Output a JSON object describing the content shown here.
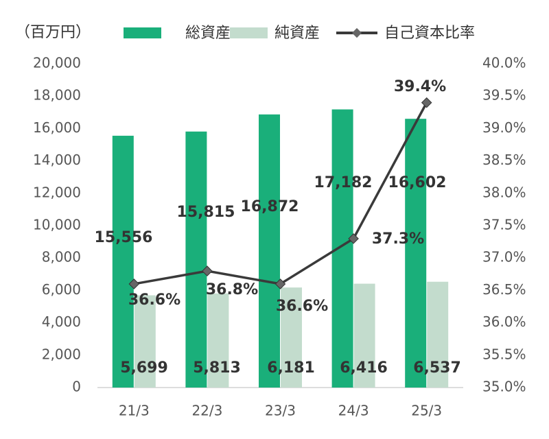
{
  "chart_data": {
    "type": "bar-line",
    "unit_label": "（百万円）",
    "categories": [
      "21/3",
      "22/3",
      "23/3",
      "24/3",
      "25/3"
    ],
    "series": [
      {
        "name": "総資産",
        "type": "bar",
        "color": "#1aaf7a",
        "values": [
          15556,
          15815,
          16872,
          17182,
          16602
        ],
        "value_labels": [
          "15,556",
          "15,815",
          "16,872",
          "17,182",
          "16,602"
        ]
      },
      {
        "name": "純資産",
        "type": "bar",
        "color": "#c3dccd",
        "values": [
          5699,
          5813,
          6181,
          6416,
          6537
        ],
        "value_labels": [
          "5,699",
          "5,813",
          "6,181",
          "6,416",
          "6,537"
        ]
      },
      {
        "name": "自己資本比率",
        "type": "line",
        "axis": "y2",
        "color": "#3a3a3a",
        "values": [
          36.6,
          36.8,
          36.6,
          37.3,
          39.4
        ],
        "value_labels": [
          "36.6%",
          "36.8%",
          "36.6%",
          "37.3%",
          "39.4%"
        ]
      }
    ],
    "ylim": [
      0,
      20000
    ],
    "yticks": [
      0,
      {
        "value": 2000,
        "label": "2,000"
      },
      {
        "value": 4000,
        "label": "4,000"
      },
      {
        "value": 6000,
        "label": "6,000"
      },
      {
        "value": 8000,
        "label": "8,000"
      },
      {
        "value": 10000,
        "label": "10,000"
      },
      {
        "value": 12000,
        "label": "12,000"
      },
      {
        "value": 14000,
        "label": "14,000"
      },
      {
        "value": 16000,
        "label": "16,000"
      },
      {
        "value": 18000,
        "label": "18,000"
      },
      {
        "value": 20000,
        "label": "20,000"
      }
    ],
    "y2lim": [
      35,
      40
    ],
    "y2ticks": [
      {
        "value": 35,
        "label": "35.0%"
      },
      {
        "value": 35.5,
        "label": "35.5%"
      },
      {
        "value": 36,
        "label": "36.0%"
      },
      {
        "value": 36.5,
        "label": "36.5%"
      },
      {
        "value": 37,
        "label": "37.0%"
      },
      {
        "value": 37.5,
        "label": "37.5%"
      },
      {
        "value": 38,
        "label": "38.0%"
      },
      {
        "value": 38.5,
        "label": "38.5%"
      },
      {
        "value": 39,
        "label": "39.0%"
      },
      {
        "value": 39.5,
        "label": "39.5%"
      },
      {
        "value": 40,
        "label": "40.0%"
      }
    ],
    "grid": false
  }
}
